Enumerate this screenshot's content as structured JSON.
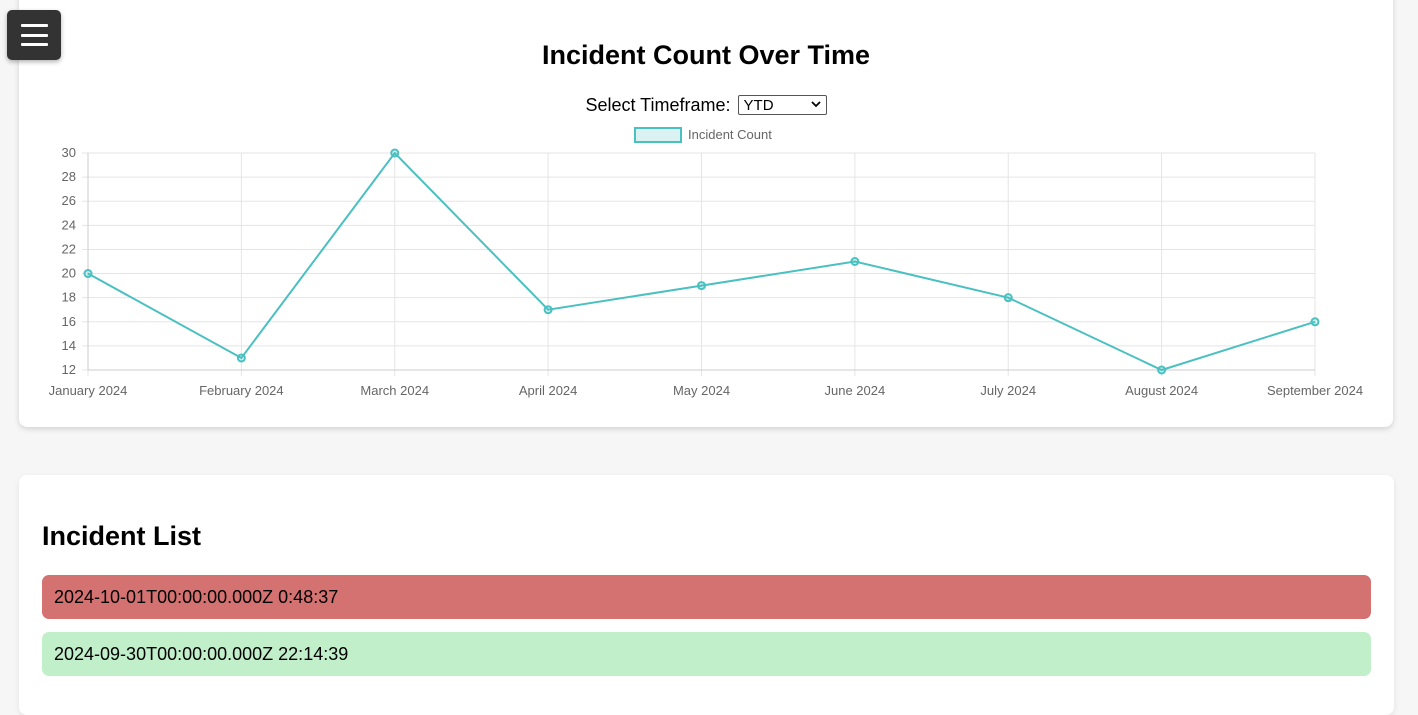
{
  "menu": {
    "icon": "hamburger-menu-icon"
  },
  "chart_section": {
    "title": "Incident Count Over Time",
    "timeframe_label": "Select Timeframe:",
    "timeframe_selected": "YTD"
  },
  "chart_data": {
    "type": "line",
    "title": "Incident Count Over Time",
    "categories": [
      "January 2024",
      "February 2024",
      "March 2024",
      "April 2024",
      "May 2024",
      "June 2024",
      "July 2024",
      "August 2024",
      "September 2024"
    ],
    "series": [
      {
        "name": "Incident Count",
        "values": [
          20,
          13,
          30,
          17,
          19,
          21,
          18,
          12,
          16
        ],
        "color": "#4bc0c0"
      }
    ],
    "ylim": [
      12,
      30
    ],
    "yticks": [
      12,
      14,
      16,
      18,
      20,
      22,
      24,
      26,
      28,
      30
    ],
    "grid": true,
    "legend_position": "top"
  },
  "incident_list": {
    "title": "Incident List",
    "items": [
      {
        "text": "2024-10-01T00:00:00.000Z 0:48:37",
        "color": "#d47272"
      },
      {
        "text": "2024-09-30T00:00:00.000Z 22:14:39",
        "color": "#c1efca"
      }
    ]
  }
}
